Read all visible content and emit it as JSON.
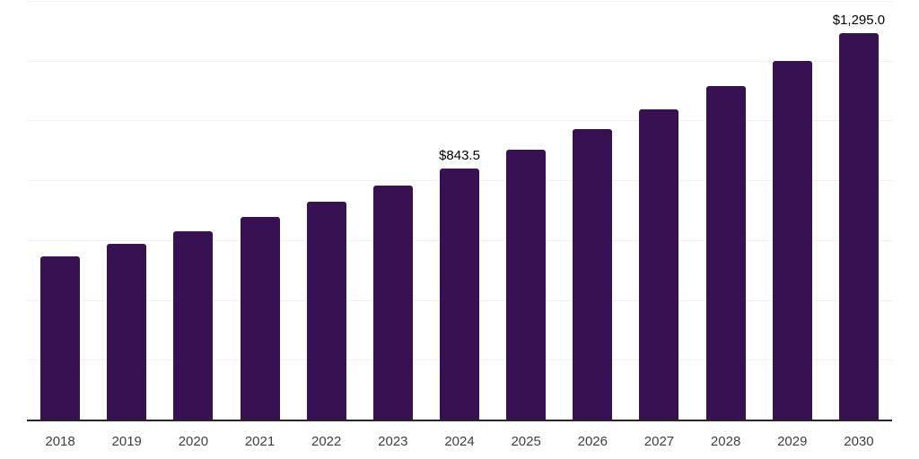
{
  "chart_data": {
    "type": "bar",
    "title": "",
    "xlabel": "",
    "ylabel": "",
    "categories": [
      "2018",
      "2019",
      "2020",
      "2021",
      "2022",
      "2023",
      "2024",
      "2025",
      "2026",
      "2027",
      "2028",
      "2029",
      "2030"
    ],
    "values": [
      548,
      590,
      632,
      680,
      730,
      784,
      843.5,
      906,
      975,
      1041,
      1119,
      1202,
      1295
    ],
    "value_labels": [
      "",
      "",
      "",
      "",
      "",
      "",
      "$843.5",
      "",
      "",
      "",
      "",
      "",
      "$1,295.0"
    ],
    "ylim": [
      0,
      1400
    ],
    "grid_step": 200,
    "grid": true,
    "legend": false,
    "colors": {
      "bar": "#371151",
      "gridline": "#f2f2f2",
      "axis_line": "#262626",
      "tick_label": "#404040",
      "value_label": "#000000"
    }
  }
}
